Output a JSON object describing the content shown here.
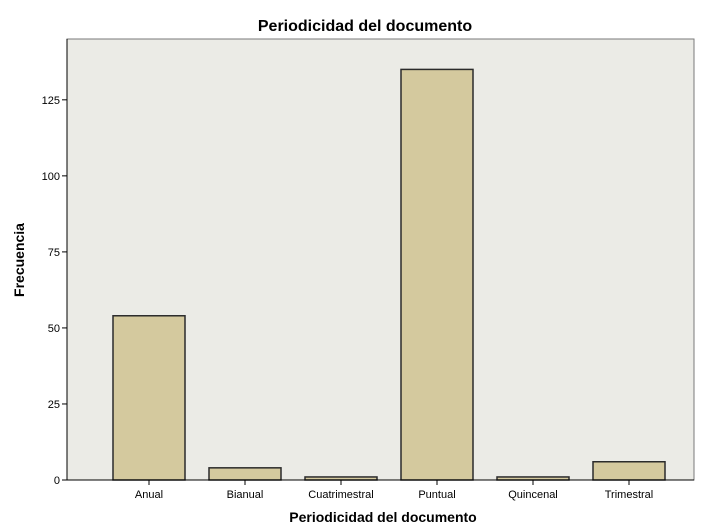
{
  "chart_data": {
    "type": "bar",
    "title": "Periodicidad del documento",
    "xlabel": "Periodicidad del documento",
    "ylabel": "Frecuencia",
    "categories": [
      "Anual",
      "Bianual",
      "Cuatrimestral",
      "Puntual",
      "Quincenal",
      "Trimestral"
    ],
    "values": [
      54,
      4,
      1,
      135,
      1,
      6
    ],
    "yticks": [
      "0",
      "25",
      "50",
      "75",
      "100",
      "125"
    ],
    "ylim": [
      0,
      145
    ],
    "grid": false,
    "colors": {
      "bar_fill": "#d4c99e",
      "bar_stroke": "#2b2b2b",
      "plot_background": "#ebebe6",
      "plot_border": "#7a7a7a",
      "axis": "#000000"
    }
  }
}
